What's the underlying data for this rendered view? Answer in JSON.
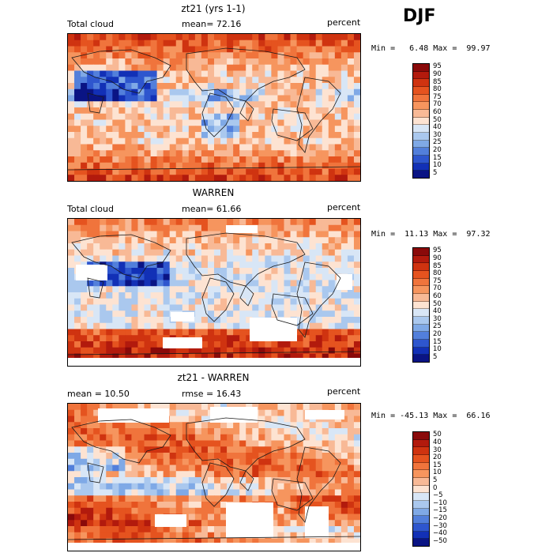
{
  "season": "DJF",
  "panels": [
    {
      "title": "zt21 (yrs 1-1)",
      "left_label": "Total cloud",
      "mid_label": "mean=  72.16",
      "right_label": "percent",
      "minmax": "Min =   6.48 Max =  99.97",
      "colorbar": {
        "labels": [
          "95",
          "90",
          "85",
          "80",
          "75",
          "70",
          "60",
          "50",
          "40",
          "30",
          "25",
          "20",
          "15",
          "10",
          "5"
        ],
        "colors": [
          "#8a0a0a",
          "#b21a0d",
          "#cf3310",
          "#e5531f",
          "#f0743c",
          "#f6955e",
          "#f8b996",
          "#fde3d2",
          "#d8e6f6",
          "#aac8ee",
          "#7fa9e6",
          "#527fdb",
          "#2e56ce",
          "#1230b6",
          "#0a1484"
        ]
      }
    },
    {
      "title": "WARREN",
      "left_label": "Total cloud",
      "mid_label": "mean=  61.66",
      "right_label": "percent",
      "minmax": "Min =  11.13 Max =  97.32",
      "colorbar": {
        "labels": [
          "95",
          "90",
          "85",
          "80",
          "75",
          "70",
          "60",
          "50",
          "40",
          "30",
          "25",
          "20",
          "15",
          "10",
          "5"
        ],
        "colors": [
          "#8a0a0a",
          "#b21a0d",
          "#cf3310",
          "#e5531f",
          "#f0743c",
          "#f6955e",
          "#f8b996",
          "#fde3d2",
          "#d8e6f6",
          "#aac8ee",
          "#7fa9e6",
          "#527fdb",
          "#2e56ce",
          "#1230b6",
          "#0a1484"
        ]
      }
    },
    {
      "title": "zt21 - WARREN",
      "left_label": "mean =  10.50",
      "mid_label": "rmse =  16.43",
      "right_label": "percent",
      "minmax": "Min = -45.13 Max =  66.16",
      "colorbar": {
        "labels": [
          "50",
          "40",
          "30",
          "20",
          "15",
          "10",
          "5",
          "0",
          "−5",
          "−10",
          "−15",
          "−20",
          "−30",
          "−40",
          "−50"
        ],
        "colors": [
          "#8a0a0a",
          "#b21a0d",
          "#cf3310",
          "#e5531f",
          "#f0743c",
          "#f6955e",
          "#f8b996",
          "#fde3d2",
          "#d8e6f6",
          "#aac8ee",
          "#7fa9e6",
          "#527fdb",
          "#2e56ce",
          "#1230b6",
          "#0a1484"
        ]
      }
    }
  ]
}
